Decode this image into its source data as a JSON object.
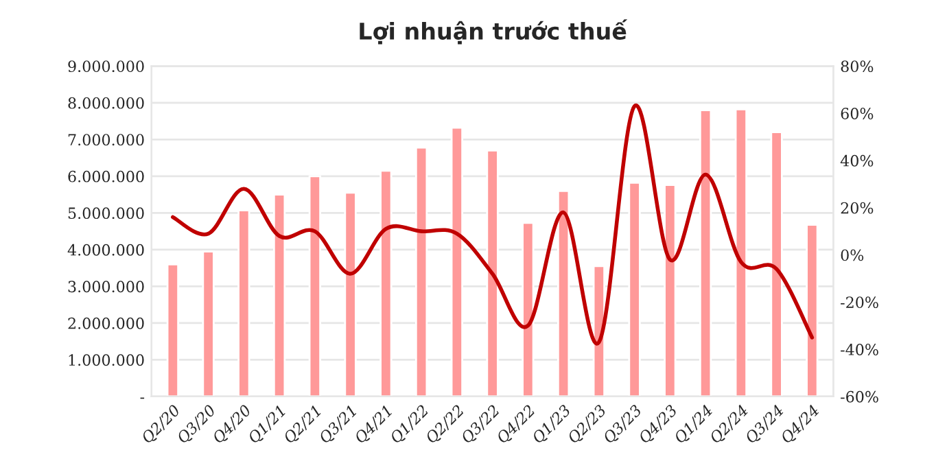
{
  "chart_data": {
    "type": "bar",
    "title": "Lợi nhuận trước thuế",
    "categories": [
      "Q2/20",
      "Q3/20",
      "Q4/20",
      "Q1/21",
      "Q2/21",
      "Q3/21",
      "Q4/21",
      "Q1/22",
      "Q2/22",
      "Q3/22",
      "Q4/22",
      "Q1/23",
      "Q2/23",
      "Q3/23",
      "Q4/23",
      "Q1/24",
      "Q2/24",
      "Q3/24",
      "Q4/24"
    ],
    "series": [
      {
        "color": "#ff9999",
        "values": [
          3600000,
          3950000,
          5070000,
          5500000,
          6000000,
          5550000,
          6150000,
          6780000,
          7320000,
          6700000,
          4730000,
          5600000,
          3550000,
          5820000,
          5760000,
          7800000,
          7820000,
          7200000,
          4680000
        ]
      },
      {
        "type": "line",
        "axis": "y2",
        "color": "#c00000",
        "values": [
          16,
          9,
          28,
          8,
          10,
          -8,
          11,
          10,
          9,
          -8,
          -30,
          18,
          -37,
          63,
          -2,
          34,
          -3,
          -6,
          -35
        ]
      }
    ],
    "ylim": [
      0,
      9000000
    ],
    "yticks": [
      {
        "value": 0,
        "label": "-"
      },
      {
        "value": 1000000,
        "label": "1.000.000"
      },
      {
        "value": 2000000,
        "label": "2.000.000"
      },
      {
        "value": 3000000,
        "label": "3.000.000"
      },
      {
        "value": 4000000,
        "label": "4.000.000"
      },
      {
        "value": 5000000,
        "label": "5.000.000"
      },
      {
        "value": 6000000,
        "label": "6.000.000"
      },
      {
        "value": 7000000,
        "label": "7.000.000"
      },
      {
        "value": 8000000,
        "label": "8.000.000"
      },
      {
        "value": 9000000,
        "label": "9.000.000"
      }
    ],
    "y2lim": [
      -60,
      80
    ],
    "y2ticks": [
      {
        "value": -60,
        "label": "-60%"
      },
      {
        "value": -40,
        "label": "-40%"
      },
      {
        "value": -20,
        "label": "-20%"
      },
      {
        "value": 0,
        "label": "0%"
      },
      {
        "value": 20,
        "label": "20%"
      },
      {
        "value": 40,
        "label": "40%"
      },
      {
        "value": 60,
        "label": "60%"
      },
      {
        "value": 80,
        "label": "80%"
      }
    ],
    "grid": "y",
    "legend": false
  }
}
